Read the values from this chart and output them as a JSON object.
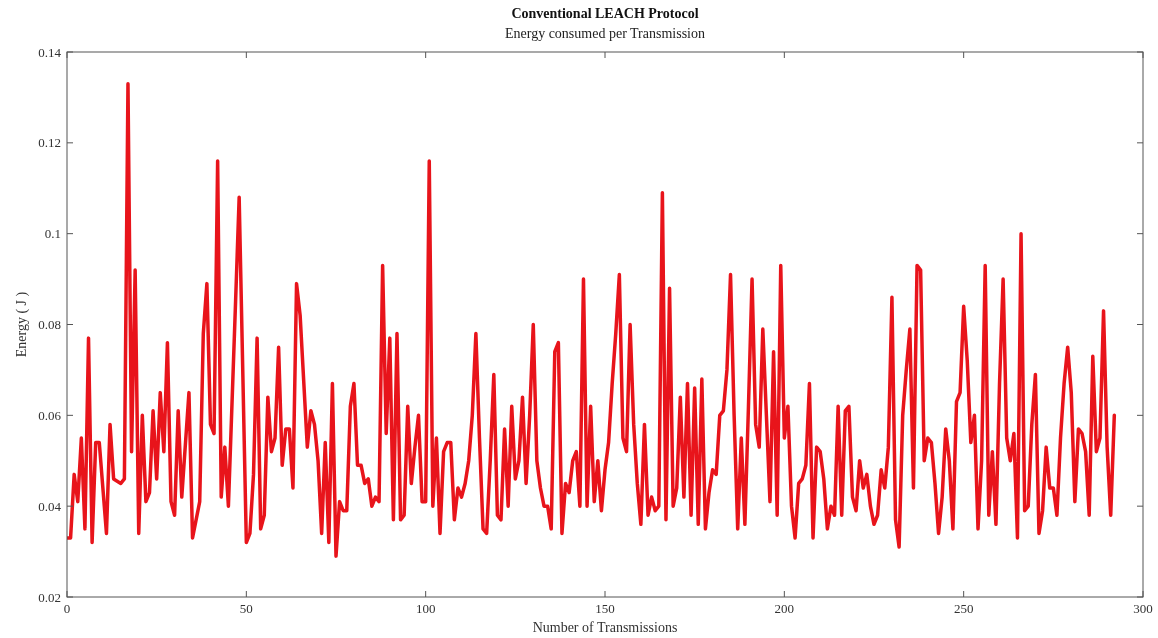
{
  "chart_data": {
    "type": "line",
    "title": "Conventional LEACH Protocol",
    "subtitle": "Energy consumed per Transmission",
    "xlabel": "Number of Transmissions",
    "ylabel": "Energy ( J )",
    "xlim": [
      0,
      300
    ],
    "xticks": [
      0,
      50,
      100,
      150,
      200,
      250,
      300
    ],
    "ylim": [
      0.02,
      0.14
    ],
    "yticks": [
      0.02,
      0.04,
      0.06,
      0.08,
      {
        "value": 0.1,
        "label": "0.1"
      },
      0.12,
      0.14
    ],
    "marker": "none",
    "line_style": "solid",
    "series": [
      {
        "color": "#e8141b",
        "x": [
          0,
          1,
          2,
          3,
          4,
          5,
          6,
          7,
          8,
          9,
          11,
          12,
          13,
          15,
          16,
          17,
          18,
          19,
          20,
          21,
          22,
          23,
          24,
          25,
          26,
          27,
          28,
          29,
          30,
          31,
          32,
          34,
          35,
          37,
          38,
          39,
          40,
          41,
          42,
          43,
          44,
          45,
          47,
          48,
          50,
          51,
          52,
          53,
          54,
          55,
          56,
          57,
          58,
          59,
          60,
          61,
          62,
          63,
          64,
          65,
          67,
          68,
          69,
          70,
          71,
          72,
          73,
          74,
          75,
          76,
          77,
          78,
          79,
          80,
          81,
          82,
          83,
          84,
          85,
          86,
          87,
          88,
          89,
          90,
          91,
          92,
          93,
          94,
          95,
          96,
          97,
          98,
          99,
          100,
          101,
          102,
          103,
          104,
          105,
          106,
          107,
          108,
          109,
          110,
          111,
          112,
          113,
          114,
          115,
          116,
          117,
          118,
          119,
          120,
          121,
          122,
          123,
          124,
          125,
          126,
          127,
          128,
          129,
          130,
          131,
          132,
          133,
          134,
          135,
          136,
          137,
          138,
          139,
          140,
          141,
          142,
          143,
          144,
          145,
          146,
          147,
          148,
          149,
          150,
          151,
          152,
          153,
          154,
          155,
          156,
          157,
          158,
          159,
          160,
          161,
          162,
          163,
          164,
          165,
          166,
          167,
          168,
          169,
          170,
          171,
          172,
          173,
          174,
          175,
          176,
          177,
          178,
          179,
          180,
          181,
          182,
          183,
          184,
          185,
          186,
          187,
          188,
          189,
          190,
          191,
          192,
          193,
          194,
          195,
          196,
          197,
          198,
          199,
          200,
          201,
          202,
          203,
          204,
          205,
          206,
          207,
          208,
          209,
          210,
          211,
          212,
          213,
          214,
          215,
          216,
          217,
          218,
          219,
          220,
          221,
          222,
          223,
          224,
          225,
          226,
          227,
          228,
          229,
          230,
          231,
          232,
          233,
          234,
          235,
          236,
          237,
          238,
          239,
          240,
          241,
          242,
          243,
          244,
          245,
          246,
          247,
          248,
          249,
          250,
          251,
          252,
          253,
          254,
          255,
          256,
          257,
          258,
          259,
          260,
          261,
          262,
          263,
          264,
          265,
          266,
          267,
          268,
          269,
          270,
          271,
          272,
          273,
          274,
          275,
          276,
          277,
          278,
          279,
          280,
          281,
          282,
          283,
          284,
          285,
          286,
          287,
          288,
          289,
          290,
          291,
          292
        ],
        "values": [
          0.033,
          0.033,
          0.047,
          0.041,
          0.055,
          0.035,
          0.077,
          0.032,
          0.054,
          0.054,
          0.034,
          0.058,
          0.046,
          0.045,
          0.046,
          0.133,
          0.052,
          0.092,
          0.034,
          0.06,
          0.041,
          0.043,
          0.061,
          0.046,
          0.065,
          0.052,
          0.076,
          0.041,
          0.038,
          0.061,
          0.042,
          0.065,
          0.033,
          0.041,
          0.078,
          0.089,
          0.058,
          0.056,
          0.116,
          0.042,
          0.053,
          0.04,
          0.085,
          0.108,
          0.032,
          0.034,
          0.047,
          0.077,
          0.035,
          0.038,
          0.064,
          0.052,
          0.055,
          0.075,
          0.049,
          0.057,
          0.057,
          0.044,
          0.089,
          0.082,
          0.053,
          0.061,
          0.058,
          0.05,
          0.034,
          0.054,
          0.032,
          0.067,
          0.029,
          0.041,
          0.039,
          0.039,
          0.062,
          0.067,
          0.049,
          0.049,
          0.045,
          0.046,
          0.04,
          0.042,
          0.041,
          0.093,
          0.056,
          0.077,
          0.037,
          0.078,
          0.037,
          0.038,
          0.062,
          0.045,
          0.053,
          0.06,
          0.041,
          0.041,
          0.116,
          0.04,
          0.055,
          0.034,
          0.052,
          0.054,
          0.054,
          0.037,
          0.044,
          0.042,
          0.045,
          0.05,
          0.06,
          0.078,
          0.055,
          0.035,
          0.034,
          0.05,
          0.069,
          0.038,
          0.037,
          0.057,
          0.04,
          0.062,
          0.046,
          0.05,
          0.064,
          0.045,
          0.06,
          0.08,
          0.05,
          0.044,
          0.04,
          0.04,
          0.035,
          0.074,
          0.076,
          0.034,
          0.045,
          0.043,
          0.05,
          0.052,
          0.04,
          0.09,
          0.04,
          0.062,
          0.041,
          0.05,
          0.039,
          0.048,
          0.054,
          0.067,
          0.078,
          0.091,
          0.055,
          0.052,
          0.08,
          0.058,
          0.045,
          0.036,
          0.058,
          0.038,
          0.042,
          0.039,
          0.04,
          0.109,
          0.037,
          0.088,
          0.04,
          0.044,
          0.064,
          0.042,
          0.067,
          0.038,
          0.066,
          0.036,
          0.068,
          0.035,
          0.043,
          0.048,
          0.047,
          0.06,
          0.061,
          0.07,
          0.091,
          0.06,
          0.035,
          0.055,
          0.036,
          0.062,
          0.09,
          0.058,
          0.053,
          0.079,
          0.06,
          0.041,
          0.074,
          0.038,
          0.093,
          0.055,
          0.062,
          0.04,
          0.033,
          0.045,
          0.046,
          0.049,
          0.067,
          0.033,
          0.053,
          0.052,
          0.046,
          0.035,
          0.04,
          0.038,
          0.062,
          0.038,
          0.061,
          0.062,
          0.042,
          0.039,
          0.05,
          0.044,
          0.047,
          0.04,
          0.036,
          0.038,
          0.048,
          0.044,
          0.053,
          0.086,
          0.037,
          0.031,
          0.06,
          0.07,
          0.079,
          0.044,
          0.093,
          0.092,
          0.05,
          0.055,
          0.054,
          0.045,
          0.034,
          0.042,
          0.057,
          0.05,
          0.035,
          0.063,
          0.065,
          0.084,
          0.072,
          0.054,
          0.06,
          0.035,
          0.05,
          0.093,
          0.038,
          0.052,
          0.036,
          0.067,
          0.09,
          0.055,
          0.05,
          0.056,
          0.033,
          0.1,
          0.039,
          0.04,
          0.058,
          0.069,
          0.034,
          0.039,
          0.053,
          0.044,
          0.044,
          0.038,
          0.055,
          0.067,
          0.075,
          0.065,
          0.041,
          0.057,
          0.056,
          0.052,
          0.038,
          0.073,
          0.052,
          0.055,
          0.083,
          0.053,
          0.038,
          0.06
        ]
      }
    ]
  }
}
